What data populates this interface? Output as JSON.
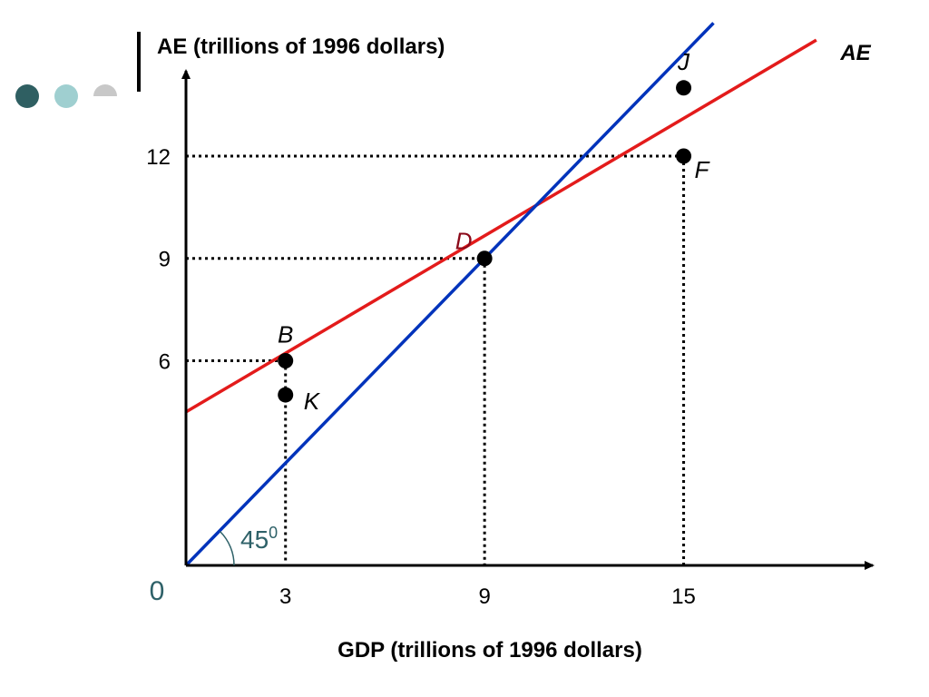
{
  "decor": {
    "bullet_colors": [
      "#2f5f62",
      "#9fcfd0",
      "#c8c8c8"
    ]
  },
  "chart_data": {
    "type": "line",
    "ylabel": "AE (trillions of 1996 dollars)",
    "xlabel": "GDP (trillions of 1996 dollars)",
    "origin_label": "0",
    "angle_label": {
      "base": "45",
      "sup": "0",
      "color": "#2e6168"
    },
    "xlim": [
      0,
      20.7
    ],
    "ylim": [
      0,
      14.5
    ],
    "x_ticks": [
      3,
      9,
      15
    ],
    "y_ticks": [
      6,
      9,
      12
    ],
    "series": [
      {
        "name": "AE",
        "color": "#e31b1b",
        "x": [
          0,
          19.0
        ],
        "y": [
          4.5,
          15.4
        ]
      },
      {
        "name": "",
        "color": "#0033bb",
        "x": [
          0,
          15.9
        ],
        "y": [
          0,
          15.9
        ]
      }
    ],
    "points": [
      {
        "label": "J",
        "x": 15,
        "y": 14,
        "label_color": "#000000",
        "label_pos": "above"
      },
      {
        "label": "F",
        "x": 15,
        "y": 12,
        "label_color": "#000000",
        "label_pos": "below-right"
      },
      {
        "label": "D",
        "x": 9,
        "y": 9,
        "label_color": "#8b0a1a",
        "label_pos": "above-left"
      },
      {
        "label": "B",
        "x": 3,
        "y": 6,
        "label_color": "#000000",
        "label_pos": "above"
      },
      {
        "label": "K",
        "x": 3,
        "y": 5,
        "label_color": "#000000",
        "label_pos": "right"
      }
    ],
    "guides": [
      {
        "x": 3,
        "y": 6
      },
      {
        "x": 9,
        "y": 9
      },
      {
        "x": 15,
        "y": 12
      }
    ],
    "grid": false,
    "legend": "none"
  }
}
